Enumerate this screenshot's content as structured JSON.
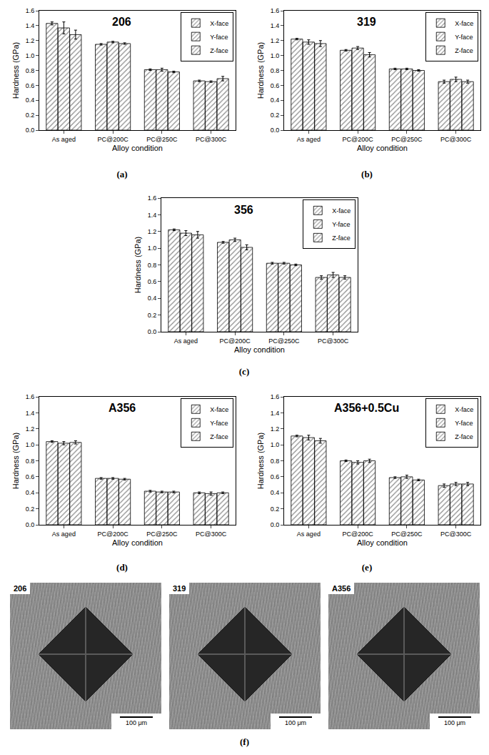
{
  "chart_data": [
    {
      "type": "bar",
      "title": "206",
      "panel_label": "(a)",
      "x_label": "Alloy condition",
      "y_label": "Hardness (GPa)",
      "categories": [
        "As aged",
        "PC@200C",
        "PC@250C",
        "PC@300C"
      ],
      "series": [
        {
          "name": "X-face",
          "color": "#4a4a4a",
          "values": [
            1.43,
            1.15,
            0.81,
            0.66
          ],
          "errors": [
            0.02,
            0.01,
            0.01,
            0.01
          ]
        },
        {
          "name": "Y-face",
          "color": "#8c8c8c",
          "values": [
            1.37,
            1.18,
            0.81,
            0.65
          ],
          "errors": [
            0.08,
            0.01,
            0.02,
            0.01
          ]
        },
        {
          "name": "Z-face",
          "color": "#c8c8c8",
          "values": [
            1.28,
            1.16,
            0.78,
            0.69
          ],
          "errors": [
            0.06,
            0.01,
            0.01,
            0.03
          ]
        }
      ],
      "ylim": [
        0,
        1.6
      ],
      "yticks": [
        {
          "value": 0,
          "label": "0.0"
        },
        0.2,
        0.4,
        0.6,
        0.8,
        {
          "value": 1,
          "label": "1.0"
        },
        1.2,
        1.4,
        1.6
      ],
      "grid": false,
      "legend": "top-right"
    },
    {
      "type": "bar",
      "title": "319",
      "panel_label": "(b)",
      "x_label": "Alloy condition",
      "y_label": "Hardness (GPa)",
      "categories": [
        "As aged",
        "PC@200C",
        "PC@250C",
        "PC@300C"
      ],
      "series": [
        {
          "name": "X-face",
          "color": "#4a4a4a",
          "values": [
            1.22,
            1.07,
            0.82,
            0.65
          ],
          "errors": [
            0.01,
            0.01,
            0.01,
            0.02
          ]
        },
        {
          "name": "Y-face",
          "color": "#8c8c8c",
          "values": [
            1.18,
            1.1,
            0.82,
            0.68
          ],
          "errors": [
            0.03,
            0.02,
            0.01,
            0.03
          ]
        },
        {
          "name": "Z-face",
          "color": "#c8c8c8",
          "values": [
            1.16,
            1.01,
            0.8,
            0.65
          ],
          "errors": [
            0.04,
            0.03,
            0.01,
            0.02
          ]
        }
      ],
      "ylim": [
        0,
        1.6
      ],
      "yticks": [
        {
          "value": 0,
          "label": "0.0"
        },
        0.2,
        0.4,
        0.6,
        0.8,
        {
          "value": 1,
          "label": "1.0"
        },
        1.2,
        1.4,
        1.6
      ],
      "grid": false,
      "legend": "top-right"
    },
    {
      "type": "bar",
      "title": "356",
      "panel_label": "(c)",
      "x_label": "Alloy condition",
      "y_label": "Hardness (GPa)",
      "categories": [
        "As aged",
        "PC@200C",
        "PC@250C",
        "PC@300C"
      ],
      "series": [
        {
          "name": "X-face",
          "color": "#4a4a4a",
          "values": [
            1.22,
            1.07,
            0.82,
            0.65
          ],
          "errors": [
            0.01,
            0.01,
            0.01,
            0.02
          ]
        },
        {
          "name": "Y-face",
          "color": "#8c8c8c",
          "values": [
            1.18,
            1.1,
            0.82,
            0.68
          ],
          "errors": [
            0.03,
            0.02,
            0.01,
            0.03
          ]
        },
        {
          "name": "Z-face",
          "color": "#c8c8c8",
          "values": [
            1.16,
            1.01,
            0.8,
            0.65
          ],
          "errors": [
            0.04,
            0.03,
            0.01,
            0.02
          ]
        }
      ],
      "ylim": [
        0,
        1.6
      ],
      "yticks": [
        {
          "value": 0,
          "label": "0.0"
        },
        0.2,
        0.4,
        0.6,
        0.8,
        {
          "value": 1,
          "label": "1.0"
        },
        1.2,
        1.4,
        1.6
      ],
      "grid": false,
      "legend": "top-right"
    },
    {
      "type": "bar",
      "title": "A356",
      "panel_label": "(d)",
      "x_label": "Alloy condition",
      "y_label": "Hardness (GPa)",
      "categories": [
        "As aged",
        "PC@200C",
        "PC@250C",
        "PC@300C"
      ],
      "series": [
        {
          "name": "X-face",
          "color": "#4a4a4a",
          "values": [
            1.04,
            0.58,
            0.42,
            0.4
          ],
          "errors": [
            0.01,
            0.01,
            0.01,
            0.01
          ]
        },
        {
          "name": "Y-face",
          "color": "#8c8c8c",
          "values": [
            1.02,
            0.58,
            0.41,
            0.39
          ],
          "errors": [
            0.02,
            0.01,
            0.01,
            0.02
          ]
        },
        {
          "name": "Z-face",
          "color": "#c8c8c8",
          "values": [
            1.03,
            0.57,
            0.41,
            0.4
          ],
          "errors": [
            0.02,
            0.01,
            0.01,
            0.01
          ]
        }
      ],
      "ylim": [
        0,
        1.6
      ],
      "yticks": [
        {
          "value": 0,
          "label": "0.0"
        },
        0.2,
        0.4,
        0.6,
        0.8,
        {
          "value": 1,
          "label": "1.0"
        },
        1.2,
        1.4,
        1.6
      ],
      "grid": false,
      "legend": "top-right"
    },
    {
      "type": "bar",
      "title": "A356+0.5Cu",
      "panel_label": "(e)",
      "x_label": "Alloy condition",
      "y_label": "Hardness (GPa)",
      "categories": [
        "As aged",
        "PC@200C",
        "PC@250C",
        "PC@300C"
      ],
      "series": [
        {
          "name": "X-face",
          "color": "#4a4a4a",
          "values": [
            1.11,
            0.8,
            0.59,
            0.49
          ],
          "errors": [
            0.01,
            0.01,
            0.01,
            0.02
          ]
        },
        {
          "name": "Y-face",
          "color": "#8c8c8c",
          "values": [
            1.09,
            0.78,
            0.6,
            0.51
          ],
          "errors": [
            0.03,
            0.02,
            0.02,
            0.02
          ]
        },
        {
          "name": "Z-face",
          "color": "#c8c8c8",
          "values": [
            1.05,
            0.8,
            0.56,
            0.51
          ],
          "errors": [
            0.03,
            0.02,
            0.01,
            0.02
          ]
        }
      ],
      "ylim": [
        0,
        1.6
      ],
      "yticks": [
        {
          "value": 0,
          "label": "0.0"
        },
        0.2,
        0.4,
        0.6,
        0.8,
        {
          "value": 1,
          "label": "1.0"
        },
        1.2,
        1.4,
        1.6
      ],
      "grid": false,
      "legend": "top-right"
    }
  ],
  "micrographs": {
    "panel_label": "(f)",
    "images": [
      {
        "label": "206",
        "scale_bar": "100 μm"
      },
      {
        "label": "319",
        "scale_bar": "100 μm"
      },
      {
        "label": "A356",
        "scale_bar": "100 μm"
      }
    ]
  }
}
